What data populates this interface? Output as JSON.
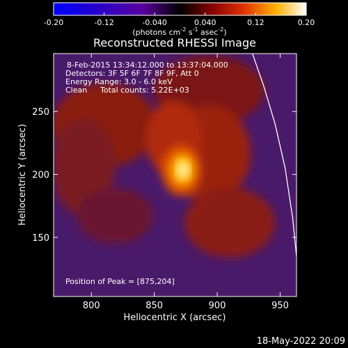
{
  "chart_data": {
    "type": "heatmap",
    "title": "Reconstructed RHESSI Image",
    "xlabel": "Heliocentric X (arcsec)",
    "ylabel": "Heliocentric Y (arcsec)",
    "xlim": [
      770,
      963
    ],
    "ylim": [
      103,
      296
    ],
    "x_ticks": [
      "800",
      "850",
      "900",
      "950"
    ],
    "y_ticks": [
      "150",
      "200",
      "250"
    ],
    "colorbar": {
      "ticks": [
        "-0.20",
        "-0.12",
        "-0.040",
        "0.040",
        "0.12",
        "0.20"
      ],
      "unit_prefix": "(photons cm",
      "unit_exp1": "-2",
      "unit_mid": " s",
      "unit_exp2": "-1",
      "unit_mid2": " asec",
      "unit_exp3": "-2",
      "unit_suffix": ")",
      "range": [
        -0.2,
        0.2
      ]
    },
    "annotations": {
      "time_range": "8-Feb-2015 13:34:12.000 to 13:37:04.000",
      "detectors": "Detectors: 3F 5F 6F 7F 8F 9F, Att 0",
      "energy": "Energy Range: 3.0 - 6.0 keV",
      "clean_label": "Clean",
      "total_counts": "Total counts: 5.22E+03",
      "peak": "Position of Peak = [875,204]"
    },
    "peak": {
      "x": 875,
      "y": 204
    },
    "limb_points": [
      [
        928,
        296
      ],
      [
        937,
        270
      ],
      [
        946,
        240
      ],
      [
        954,
        205
      ],
      [
        960,
        165
      ],
      [
        963,
        135
      ]
    ]
  },
  "footer": {
    "timestamp": "18-May-2022 20:09"
  }
}
